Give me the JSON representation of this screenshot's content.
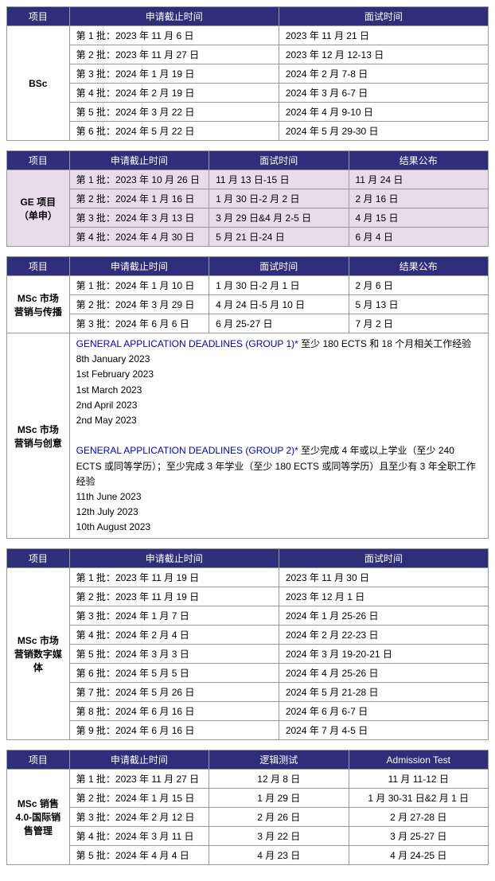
{
  "headers": {
    "program": "项目",
    "deadline": "申请截止时间",
    "interview": "面试时间",
    "result": "结果公布",
    "logic_test": "逻辑测试",
    "admission_test": "Admission Test"
  },
  "table1": {
    "program": "BSc",
    "rows": [
      {
        "deadline": "第 1 批：2023 年 11 月 6 日",
        "interview": "2023 年 11 月 21 日"
      },
      {
        "deadline": "第 2 批：2023 年 11 月 27 日",
        "interview": "2023 年 12 月 12-13 日"
      },
      {
        "deadline": "第 3 批：2024 年 1 月 19 日",
        "interview": "2024 年 2 月 7-8 日"
      },
      {
        "deadline": "第 4 批：2024 年 2 月 19 日",
        "interview": "2024 年 3 月 6-7 日"
      },
      {
        "deadline": "第 5 批：2024 年 3 月 22 日",
        "interview": "2024 年 4 月 9-10 日"
      },
      {
        "deadline": "第 6 批：2024 年 5 月 22 日",
        "interview": "2024 年 5 月 29-30 日"
      }
    ]
  },
  "table2": {
    "program": "GE 项目（单申）",
    "rows": [
      {
        "deadline": "第 1 批：2023 年 10 月 26 日",
        "interview": "11 月 13 日-15 日",
        "result": "11 月 24 日"
      },
      {
        "deadline": "第 2 批：2024 年 1 月 16 日",
        "interview": "1 月 30 日-2 月 2 日",
        "result": "2 月 16 日"
      },
      {
        "deadline": "第 3 批：2024 年 3 月 13 日",
        "interview": "3 月 29 日&4 月 2-5 日",
        "result": "4 月 15 日"
      },
      {
        "deadline": "第 4 批：2024 年 4 月 30 日",
        "interview": "5 月 21 日-24 日",
        "result": "6 月 4 日"
      }
    ]
  },
  "table3": {
    "program1": "MSc 市场营销与传播",
    "rows1": [
      {
        "deadline": "第 1 批：2024 年 1 月 10 日",
        "interview": "1 月 30 日-2 月 1 日",
        "result": "2 月 6 日"
      },
      {
        "deadline": "第 2 批：2024 年 3 月 29 日",
        "interview": "4 月 24 日-5 月 10 日",
        "result": "5 月 13 日"
      },
      {
        "deadline": "第 3 批：2024 年 6 月 6 日",
        "interview": "6 月 25-27 日",
        "result": "7 月 2 日"
      }
    ],
    "program2": "MSc 市场营销与创意",
    "group1_title": "GENERAL APPLICATION DEADLINES (GROUP 1)* ",
    "group1_req": "至少 180 ECTS 和 18 个月相关工作经验",
    "group1_dates": [
      "8th January 2023",
      "1st February 2023",
      "1st March 2023",
      "2nd April 2023",
      "2nd May 2023"
    ],
    "group2_title": "GENERAL APPLICATION DEADLINES (GROUP 2)* ",
    "group2_req": "至少完成 4 年或以上学业（至少 240 ECTS 或同等学历）；至少完成 3 年学业（至少 180 ECTS 或同等学历）且至少有 3 年全职工作经验",
    "group2_dates": [
      "11th June 2023",
      "12th July 2023",
      "10th August 2023"
    ]
  },
  "table4": {
    "program": "MSc 市场营销数字媒体",
    "rows": [
      {
        "deadline": "第 1 批：2023 年 11 月 19 日",
        "interview": "2023 年 11 月 30 日"
      },
      {
        "deadline": "第 2 批：2023 年 11 月 19 日",
        "interview": "2023 年 12 月 1 日"
      },
      {
        "deadline": "第 3 批：2024 年 1 月 7 日",
        "interview": "2024 年 1 月 25-26 日"
      },
      {
        "deadline": "第 4 批：2024 年 2 月 4 日",
        "interview": "2024 年 2 月 22-23 日"
      },
      {
        "deadline": "第 5 批：2024 年 3 月 3 日",
        "interview": "2024 年 3 月 19-20-21 日"
      },
      {
        "deadline": "第 6 批：2024 年 5 月 5 日",
        "interview": "2024 年 4 月 25-26 日"
      },
      {
        "deadline": "第 7 批：2024 年 5 月 26 日",
        "interview": "2024 年 5 月 21-28 日"
      },
      {
        "deadline": "第 8 批：2024 年 6 月 16 日",
        "interview": "2024 年 6 月 6-7 日"
      },
      {
        "deadline": "第 9 批：2024 年 6 月 16 日",
        "interview": "2024 年 7 月 4-5 日"
      }
    ]
  },
  "table5": {
    "program": "MSc 销售 4.0-国际销售管理",
    "rows": [
      {
        "deadline": "第 1 批：2023 年 11 月 27 日",
        "logic": "12 月 8 日",
        "admission": "11 月 11-12 日"
      },
      {
        "deadline": "第 2 批：2024 年 1 月 15 日",
        "logic": "1 月 29 日",
        "admission": "1 月 30-31 日&2 月 1 日"
      },
      {
        "deadline": "第 3 批：2024 年 2 月 12 日",
        "logic": "2 月 26 日",
        "admission": "2 月 27-28 日"
      },
      {
        "deadline": "第 4 批：2024 年 3 月 11 日",
        "logic": "3 月 22 日",
        "admission": "3 月 25-27 日"
      },
      {
        "deadline": "第 5 批：2024 年 4 月 4 日",
        "logic": "4 月 23 日",
        "admission": "4 月 24-25 日"
      }
    ]
  },
  "col_widths": {
    "program": "13%",
    "c3_deadline": "29%",
    "c3_col": "29%",
    "c2_col": "43.5%"
  }
}
